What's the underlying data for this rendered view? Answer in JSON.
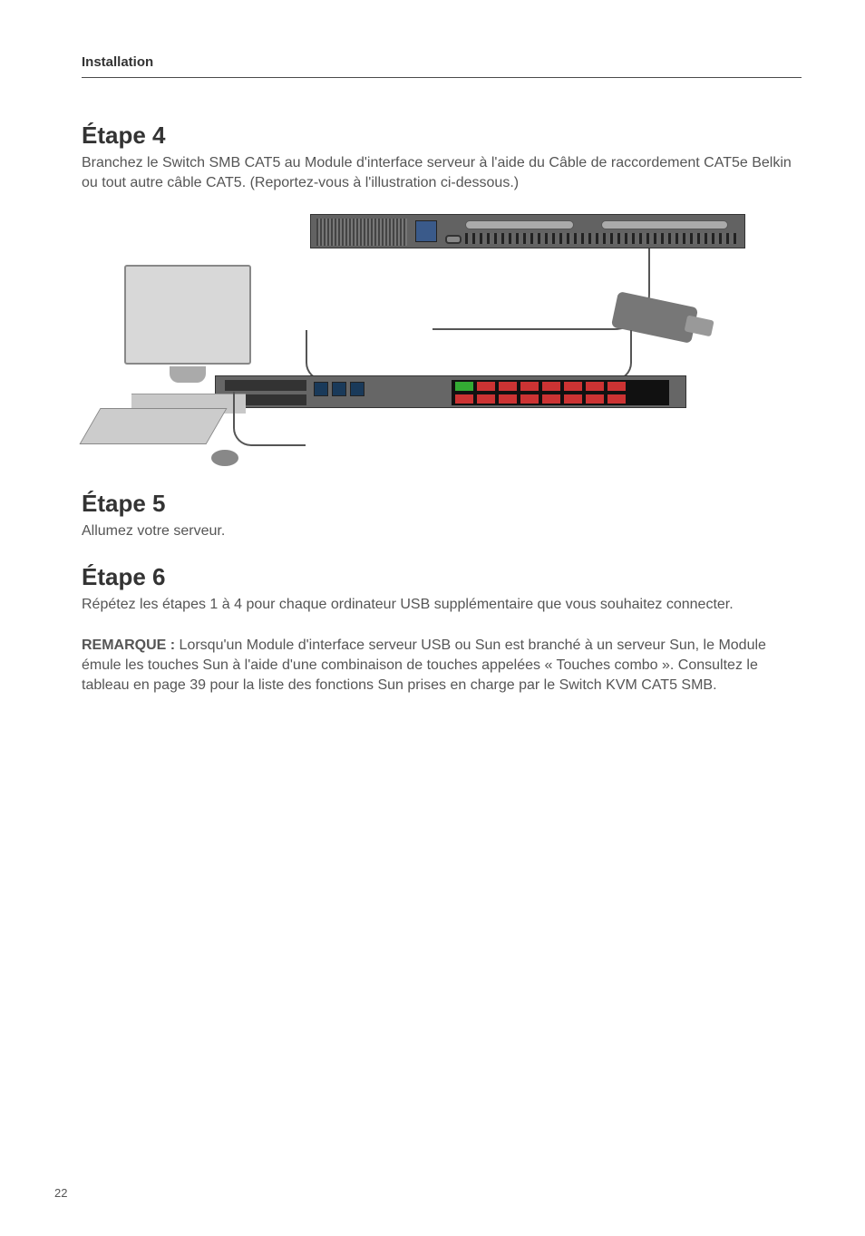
{
  "header": {
    "section_title": "Installation"
  },
  "steps": {
    "step4": {
      "heading": "Étape 4",
      "body": "Branchez le Switch SMB CAT5 au Module d'interface serveur à l'aide du Câble de raccordement CAT5e Belkin ou tout autre câble CAT5. (Reportez-vous à l'illustration ci-dessous.)"
    },
    "step5": {
      "heading": "Étape 5",
      "body": "Allumez votre serveur."
    },
    "step6": {
      "heading": "Étape 6",
      "body": "Répétez les étapes 1 à 4 pour chaque ordinateur USB supplémentaire que vous souhaitez connecter."
    }
  },
  "remark": {
    "label": "REMARQUE :",
    "body": " Lorsqu'un Module d'interface serveur USB ou Sun est branché à un serveur Sun, le Module émule les touches Sun à l'aide d'une combinaison de touches appelées « Touches combo ». Consultez le tableau en page 39 pour la liste des fonctions Sun prises en charge par le Switch KVM CAT5 SMB."
  },
  "page_number": "22",
  "illustration": {
    "type": "diagram",
    "description": "KVM switch connection diagram",
    "components": [
      "rack-switch-top",
      "rack-switch-bottom",
      "monitor",
      "keyboard",
      "mouse",
      "server-interface-module",
      "cat5-cables"
    ],
    "colors": {
      "rack_bg": "#666666",
      "rack_dark": "#333333",
      "port_green": "#33aa33",
      "port_red": "#cc3333",
      "monitor_bg": "#d8d8d8",
      "cable": "#555555"
    }
  }
}
